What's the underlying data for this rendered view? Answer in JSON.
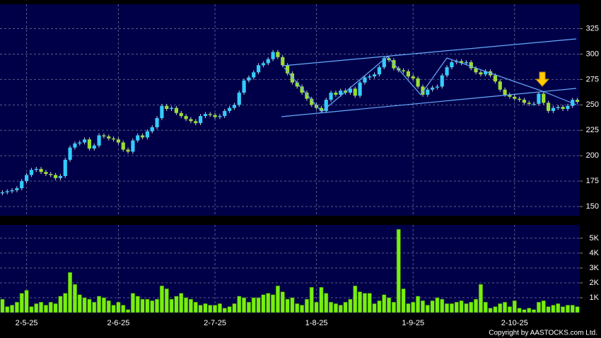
{
  "chart_data": [
    {
      "type": "candlestick",
      "up_color": "#33ccff",
      "down_color": "#99dd33",
      "open": [
        163,
        164,
        165,
        166,
        168,
        175,
        181,
        186,
        187,
        184,
        182,
        181,
        178,
        180,
        196,
        208,
        212,
        213,
        216,
        207,
        210,
        220,
        219,
        217,
        216,
        213,
        206,
        204,
        215,
        220,
        218,
        224,
        228,
        237,
        249,
        246,
        247,
        242,
        239,
        236,
        234,
        232,
        239,
        241,
        240,
        238,
        239,
        244,
        247,
        250,
        262,
        274,
        277,
        282,
        289,
        291,
        295,
        302,
        297,
        289,
        281,
        272,
        268,
        262,
        256,
        250,
        247,
        244,
        255,
        262,
        260,
        264,
        262,
        266,
        259,
        272,
        277,
        278,
        280,
        287,
        296,
        294,
        286,
        284,
        283,
        278,
        276,
        268,
        260,
        265,
        267,
        268,
        279,
        287,
        292,
        293,
        291,
        292,
        286,
        282,
        280,
        283,
        279,
        273,
        265,
        260,
        258,
        256,
        255,
        252,
        251,
        251,
        261,
        252,
        244,
        247,
        248,
        246,
        249,
        255
      ],
      "high": [
        166,
        167,
        168,
        170,
        177,
        183,
        188,
        189,
        189,
        186,
        184,
        183,
        182,
        198,
        210,
        214,
        215,
        218,
        218,
        212,
        222,
        222,
        221,
        219,
        218,
        215,
        208,
        217,
        222,
        222,
        226,
        230,
        239,
        251,
        251,
        249,
        249,
        244,
        241,
        238,
        236,
        241,
        243,
        243,
        242,
        241,
        246,
        249,
        252,
        264,
        276,
        279,
        284,
        291,
        293,
        297,
        304,
        304,
        299,
        291,
        283,
        274,
        270,
        264,
        258,
        252,
        249,
        257,
        264,
        264,
        266,
        266,
        268,
        268,
        274,
        279,
        280,
        282,
        289,
        298,
        298,
        296,
        288,
        286,
        285,
        280,
        278,
        270,
        267,
        269,
        270,
        281,
        289,
        294,
        295,
        295,
        294,
        294,
        288,
        284,
        285,
        285,
        281,
        275,
        267,
        262,
        260,
        258,
        257,
        254,
        253,
        263,
        263,
        254,
        249,
        250,
        250,
        251,
        257,
        257
      ],
      "low": [
        161,
        162,
        163,
        164,
        166,
        173,
        179,
        184,
        182,
        180,
        179,
        176,
        176,
        178,
        194,
        206,
        210,
        211,
        205,
        205,
        208,
        217,
        215,
        214,
        211,
        204,
        202,
        202,
        213,
        216,
        216,
        222,
        226,
        235,
        244,
        244,
        240,
        237,
        234,
        232,
        230,
        230,
        237,
        238,
        236,
        236,
        237,
        242,
        245,
        248,
        260,
        272,
        275,
        280,
        287,
        289,
        293,
        295,
        287,
        279,
        270,
        266,
        260,
        254,
        248,
        245,
        242,
        242,
        253,
        258,
        258,
        260,
        260,
        257,
        257,
        270,
        275,
        276,
        278,
        285,
        292,
        284,
        282,
        281,
        276,
        274,
        266,
        258,
        258,
        263,
        265,
        266,
        277,
        285,
        290,
        289,
        289,
        284,
        280,
        278,
        278,
        277,
        271,
        263,
        258,
        256,
        254,
        253,
        250,
        249,
        249,
        249,
        250,
        242,
        242,
        245,
        244,
        244,
        247,
        251
      ],
      "close": [
        164,
        165,
        166,
        168,
        175,
        181,
        186,
        187,
        184,
        182,
        181,
        178,
        180,
        196,
        208,
        212,
        213,
        216,
        207,
        210,
        220,
        219,
        217,
        216,
        213,
        206,
        204,
        215,
        220,
        218,
        224,
        228,
        237,
        249,
        246,
        247,
        242,
        239,
        236,
        234,
        232,
        239,
        241,
        240,
        238,
        239,
        244,
        247,
        250,
        262,
        274,
        277,
        282,
        289,
        291,
        295,
        302,
        297,
        289,
        281,
        272,
        268,
        262,
        256,
        250,
        247,
        244,
        255,
        262,
        260,
        264,
        262,
        266,
        259,
        272,
        277,
        278,
        280,
        287,
        296,
        294,
        286,
        284,
        283,
        278,
        276,
        268,
        260,
        265,
        267,
        268,
        279,
        287,
        292,
        293,
        291,
        292,
        286,
        282,
        280,
        283,
        279,
        273,
        265,
        260,
        258,
        256,
        255,
        252,
        251,
        251,
        261,
        252,
        244,
        247,
        248,
        246,
        249,
        255,
        253
      ],
      "ylim": [
        141,
        349
      ],
      "yticks": [
        150,
        175,
        200,
        225,
        250,
        275,
        300,
        325
      ],
      "grid": true
    },
    {
      "type": "bar",
      "color": "#77ee11",
      "categories": [
        null,
        null,
        null,
        null,
        null,
        "2-5-25",
        null,
        null,
        null,
        null,
        null,
        null,
        null,
        null,
        null,
        null,
        null,
        null,
        null,
        null,
        null,
        null,
        null,
        null,
        "2-6-25",
        null,
        null,
        null,
        null,
        null,
        null,
        null,
        null,
        null,
        null,
        null,
        null,
        null,
        null,
        null,
        null,
        null,
        null,
        null,
        "2-7-25",
        null,
        null,
        null,
        null,
        null,
        null,
        null,
        null,
        null,
        null,
        null,
        null,
        null,
        null,
        null,
        null,
        null,
        null,
        null,
        null,
        "1-8-25",
        null,
        null,
        null,
        null,
        null,
        null,
        null,
        null,
        null,
        null,
        null,
        null,
        null,
        null,
        null,
        null,
        null,
        null,
        null,
        "1-9-25",
        null,
        null,
        null,
        null,
        null,
        null,
        null,
        null,
        null,
        null,
        null,
        null,
        null,
        null,
        null,
        null,
        null,
        null,
        null,
        null,
        "2-10-25",
        null,
        null,
        null,
        null,
        null,
        null,
        null,
        null,
        null,
        null,
        null,
        null,
        null
      ],
      "values": [
        900,
        400,
        500,
        700,
        1300,
        1500,
        400,
        600,
        700,
        500,
        700,
        600,
        1100,
        1300,
        2700,
        1900,
        1200,
        1000,
        900,
        700,
        1100,
        1000,
        800,
        500,
        700,
        500,
        200,
        1300,
        1100,
        900,
        900,
        800,
        900,
        1800,
        1600,
        900,
        1100,
        1300,
        1000,
        900,
        700,
        500,
        600,
        500,
        500,
        600,
        300,
        400,
        600,
        1100,
        1000,
        700,
        1000,
        1000,
        1200,
        1300,
        1200,
        1800,
        1400,
        900,
        1000,
        600,
        500,
        900,
        1700,
        700,
        1700,
        1300,
        700,
        600,
        500,
        700,
        900,
        1800,
        1400,
        1300,
        1300,
        600,
        800,
        1200,
        1000,
        700,
        5600,
        1600,
        600,
        700,
        1100,
        800,
        500,
        800,
        1000,
        900,
        600,
        600,
        700,
        800,
        600,
        700,
        900,
        1900,
        700,
        300,
        400,
        600,
        700,
        400,
        800,
        300,
        200,
        300,
        200,
        700,
        800,
        400,
        500,
        600,
        400,
        500,
        500,
        400
      ],
      "ylim": [
        0,
        5900
      ],
      "yticks": [
        {
          "value": 1000,
          "label": "1K"
        },
        {
          "value": 2000,
          "label": "2K"
        },
        {
          "value": 3000,
          "label": "3K"
        },
        {
          "value": 4000,
          "label": "4K"
        },
        {
          "value": 5000,
          "label": "5K"
        }
      ],
      "grid": true
    }
  ],
  "copyright": "Copyright by AASTOCKS.com Ltd."
}
